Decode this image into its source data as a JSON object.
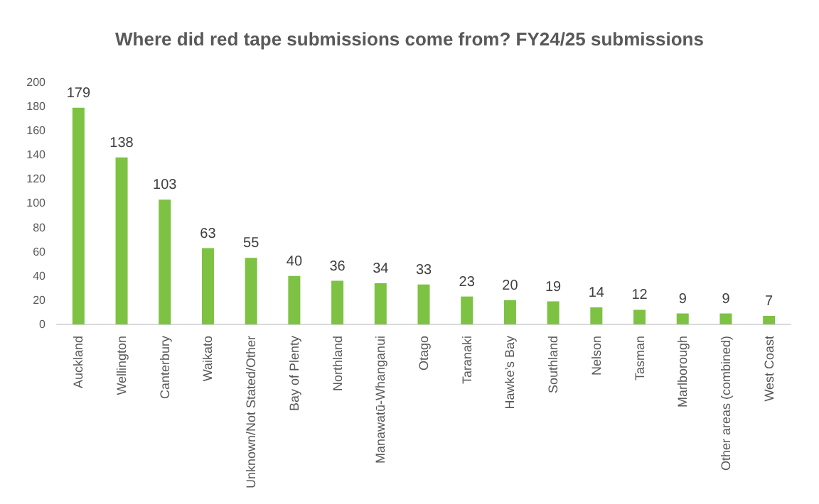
{
  "chart_data": {
    "type": "bar",
    "title": "Where did red tape submissions come from? FY24/25 submissions",
    "categories": [
      "Auckland",
      "Wellington",
      "Canterbury",
      "Waikato",
      "Unknown/Not Stated/Other",
      "Bay of Plenty",
      "Northland",
      "Manawatū-Whanganui",
      "Otago",
      "Taranaki",
      "Hawke’s Bay",
      "Southland",
      "Nelson",
      "Tasman",
      "Marlborough",
      "Other areas (combined)",
      "West Coast"
    ],
    "values": [
      179,
      138,
      103,
      63,
      55,
      40,
      36,
      34,
      33,
      23,
      20,
      19,
      14,
      12,
      9,
      9,
      7
    ],
    "color": "#7dc242",
    "ylim": [
      0,
      200
    ],
    "yticks": [
      0,
      20,
      40,
      60,
      80,
      100,
      120,
      140,
      160,
      180,
      200
    ],
    "grid": false,
    "data_labels": true
  }
}
